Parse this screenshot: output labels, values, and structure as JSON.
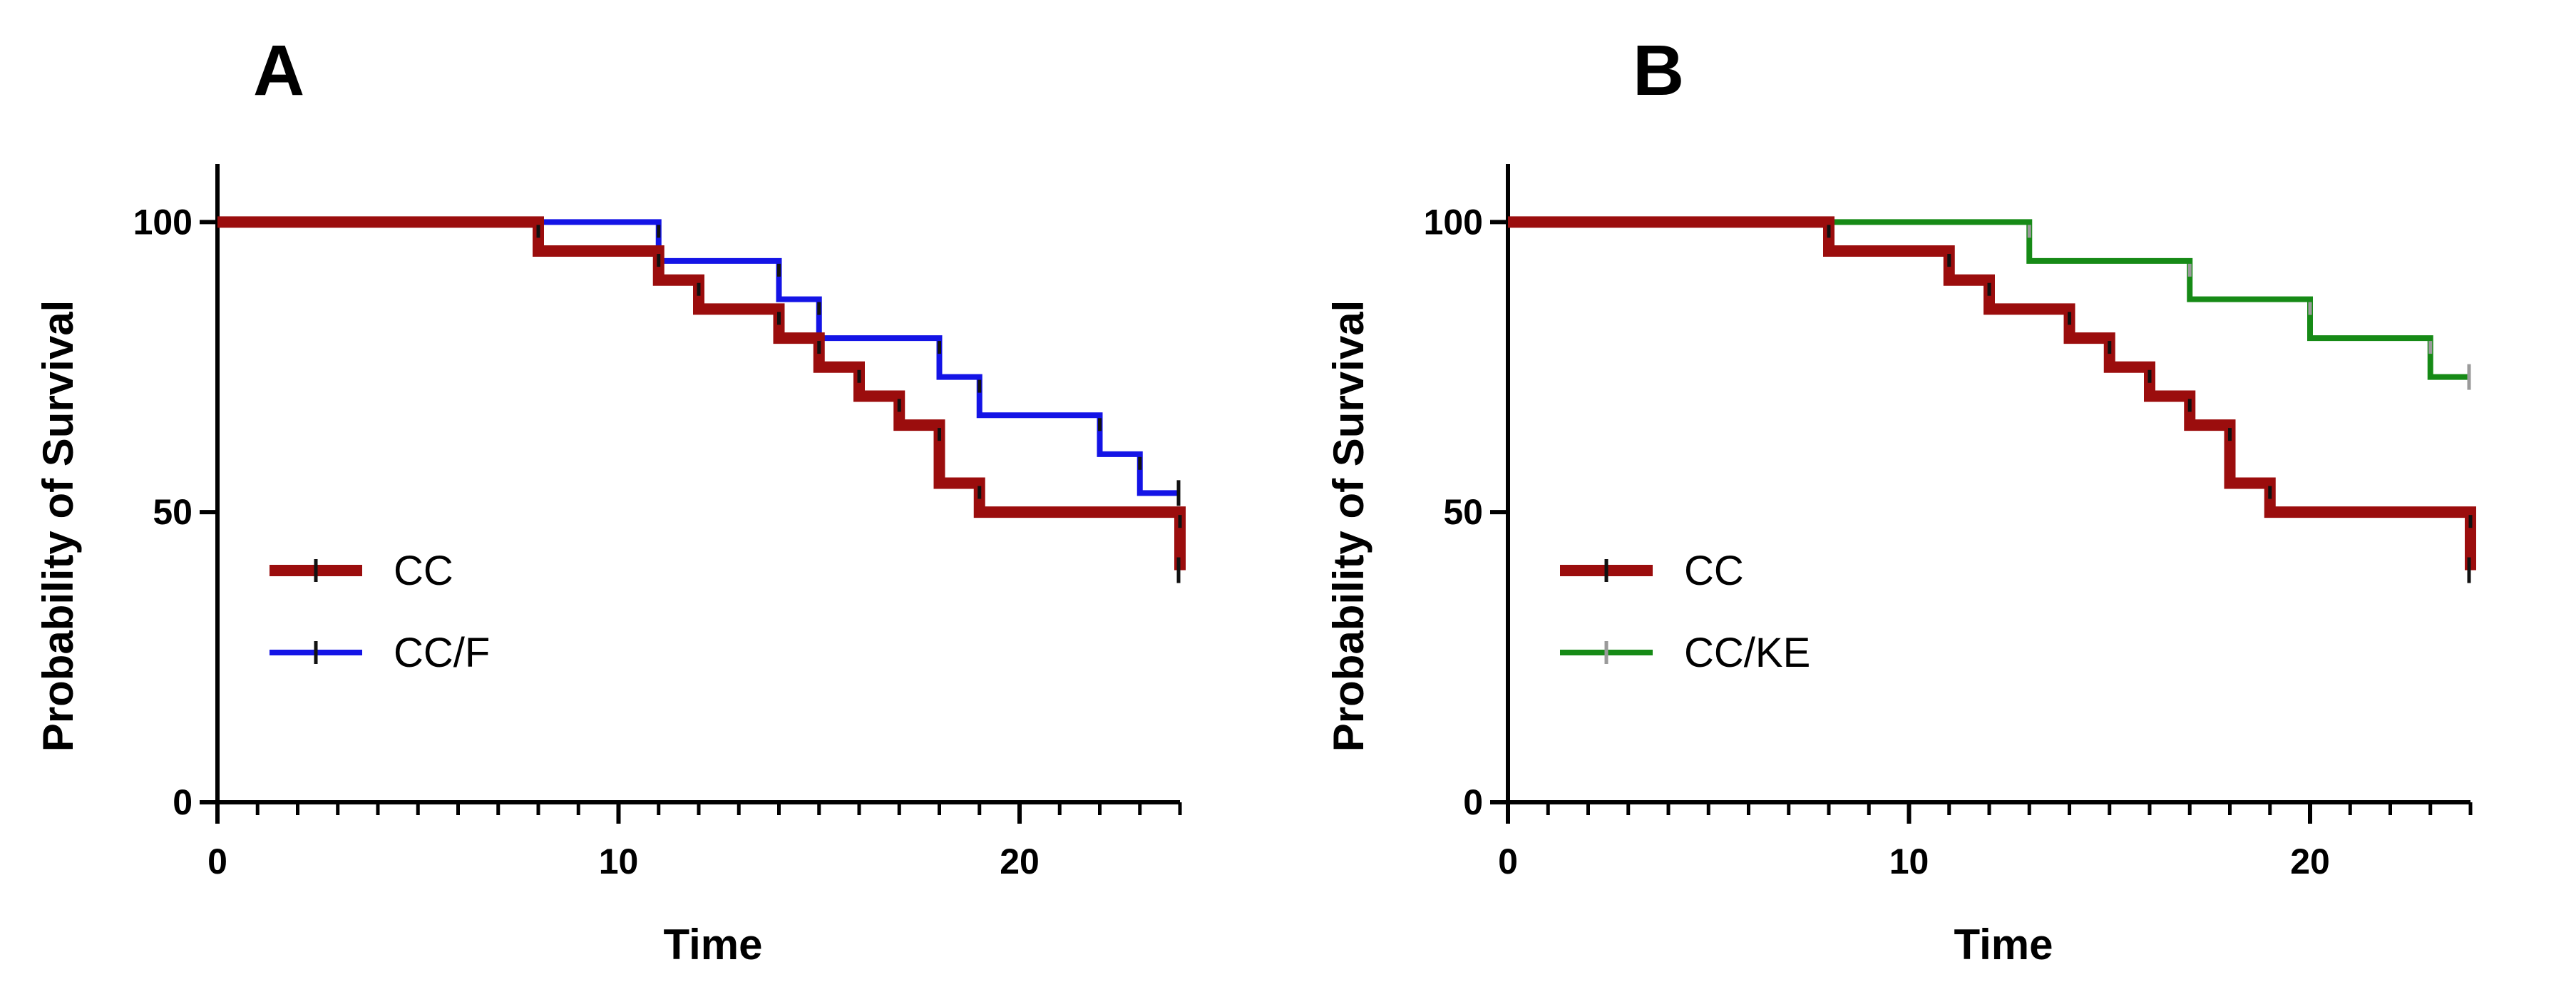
{
  "chart_data": [
    {
      "type": "line",
      "subtype": "kaplan-meier step",
      "panel_label": "A",
      "xlabel": "Time",
      "ylabel": "Probability of Survival",
      "xlim": [
        0,
        24
      ],
      "ylim": [
        0,
        110
      ],
      "x_ticks": [
        0,
        10,
        20
      ],
      "x_minor_ticks": [
        1,
        2,
        3,
        4,
        5,
        6,
        7,
        8,
        9,
        11,
        12,
        13,
        14,
        15,
        16,
        17,
        18,
        19,
        21,
        22,
        23,
        24
      ],
      "y_ticks": [
        0,
        50,
        100
      ],
      "legend_position": "bottom-left",
      "series": [
        {
          "name": "CC",
          "color": "#9B0D0D",
          "tick_color": "#111111",
          "times": [
            8,
            11,
            12,
            14,
            15,
            16,
            17,
            18,
            19,
            24
          ],
          "values": [
            95,
            90,
            85,
            80,
            75,
            70,
            65,
            55,
            50,
            40
          ],
          "end_time": 24,
          "censor_times": [
            24
          ]
        },
        {
          "name": "CC/F",
          "color": "#1414E6",
          "tick_color": "#111111",
          "times": [
            11,
            14,
            15,
            18,
            19,
            22,
            23
          ],
          "values": [
            93.3,
            86.7,
            80,
            73.3,
            66.7,
            60,
            53.3
          ],
          "end_time": 24,
          "censor_times": [
            24
          ]
        }
      ]
    },
    {
      "type": "line",
      "subtype": "kaplan-meier step",
      "panel_label": "B",
      "xlabel": "Time",
      "ylabel": "Probability of Survival",
      "xlim": [
        0,
        24
      ],
      "ylim": [
        0,
        110
      ],
      "x_ticks": [
        0,
        10,
        20
      ],
      "x_minor_ticks": [
        1,
        2,
        3,
        4,
        5,
        6,
        7,
        8,
        9,
        11,
        12,
        13,
        14,
        15,
        16,
        17,
        18,
        19,
        21,
        22,
        23,
        24
      ],
      "y_ticks": [
        0,
        50,
        100
      ],
      "legend_position": "bottom-left",
      "series": [
        {
          "name": "CC",
          "color": "#9B0D0D",
          "tick_color": "#111111",
          "times": [
            8,
            11,
            12,
            14,
            15,
            16,
            17,
            18,
            19,
            24
          ],
          "values": [
            95,
            90,
            85,
            80,
            75,
            70,
            65,
            55,
            50,
            40
          ],
          "end_time": 24,
          "censor_times": [
            24
          ]
        },
        {
          "name": "CC/KE",
          "color": "#168A16",
          "tick_color": "#9A9A9A",
          "times": [
            13,
            17,
            20,
            23
          ],
          "values": [
            93.3,
            86.7,
            80,
            73.3
          ],
          "end_time": 24,
          "censor_times": [
            24
          ]
        }
      ]
    }
  ]
}
